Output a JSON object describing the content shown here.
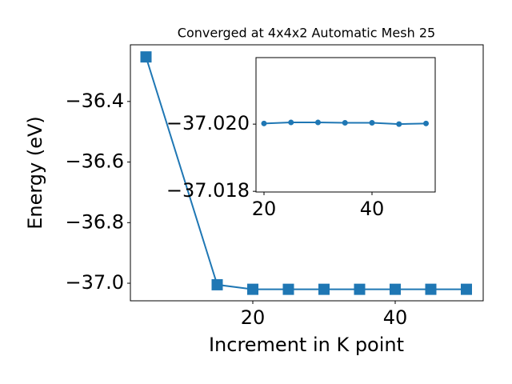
{
  "chart_data": [
    {
      "type": "line",
      "title": "Converged at 4x4x2 Automatic Mesh 25",
      "x_label": "Increment in K point",
      "y_label": "Energy (eV)",
      "x": [
        5,
        15,
        20,
        25,
        30,
        35,
        40,
        45,
        50
      ],
      "series": [
        {
          "name": "Energy",
          "color": "#1f77b4",
          "marker": "square",
          "values": [
            -36.253,
            -37.005,
            -37.02002,
            -37.02005,
            -37.02005,
            -37.02004,
            -37.02004,
            -37.02,
            -37.02002
          ]
        }
      ],
      "xlim": [
        2.81,
        52.36
      ],
      "ylim": [
        -37.058,
        -36.213
      ],
      "xticks": [
        20,
        40
      ],
      "yticks": [
        {
          "value": -36.4,
          "label": "−36.4"
        },
        {
          "value": -36.6,
          "label": "−36.6"
        },
        {
          "value": -36.8,
          "label": "−36.8"
        },
        {
          "value": -37.0,
          "label": "−37.0"
        }
      ]
    },
    {
      "type": "line",
      "x": [
        20,
        25,
        30,
        35,
        40,
        45,
        50
      ],
      "series": [
        {
          "name": "Energy",
          "color": "#1f77b4",
          "marker": "circle",
          "values": [
            -37.02002,
            -37.02005,
            -37.02005,
            -37.02004,
            -37.02004,
            -37.02,
            -37.02002
          ]
        }
      ],
      "xlim": [
        18.52,
        51.7
      ],
      "ylim": [
        -37.01798,
        -37.02198
      ],
      "xticks": [
        20,
        40
      ],
      "yticks": [
        {
          "value": -37.02,
          "label": "−37.020"
        },
        {
          "value": -37.018,
          "label": "−37.018"
        }
      ]
    }
  ]
}
